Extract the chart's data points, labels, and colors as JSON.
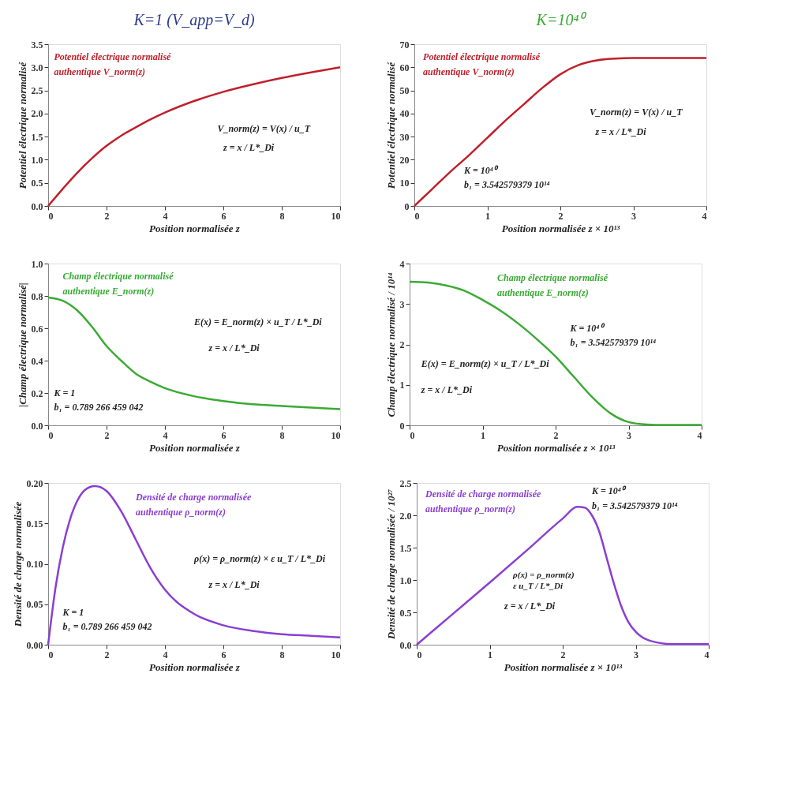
{
  "chart_data": [
    {
      "type": "line",
      "title": "K=1 (V_app=V_d)",
      "xlabel": "Position normalisée z",
      "ylabel": "Potentiel électrique normalisé",
      "x": [
        0,
        0.5,
        1,
        1.5,
        2,
        2.5,
        3,
        3.5,
        4,
        5,
        6,
        7,
        8,
        9,
        10
      ],
      "series": [
        {
          "color": "#c0202a",
          "values": [
            0,
            0.37,
            0.72,
            1.03,
            1.3,
            1.52,
            1.7,
            1.87,
            2.02,
            2.27,
            2.47,
            2.63,
            2.77,
            2.89,
            3.0
          ]
        }
      ],
      "xlim": [
        0,
        10
      ],
      "xticks": [
        0,
        2,
        4,
        6,
        8,
        10
      ],
      "ylim": [
        0,
        3.5
      ],
      "yticks": [
        {
          "value": 0,
          "label": "0.0"
        },
        0.5,
        {
          "value": 1,
          "label": "1.0"
        },
        1.5,
        {
          "value": 2,
          "label": "2.0"
        },
        2.5,
        {
          "value": 3,
          "label": "3.0"
        },
        3.5
      ],
      "annotations": [
        "Potentiel électrique normalisé",
        "authentique V_norm(z)",
        "V_norm(z) = V(x) / u_T",
        "z = x / L*_Di"
      ]
    },
    {
      "type": "line",
      "title": "K=10⁴⁰",
      "xlabel": "Position normalisée z × 10¹³",
      "ylabel": "Potentiel électrique normalisé",
      "x": [
        0,
        0.25,
        0.5,
        0.75,
        1,
        1.25,
        1.5,
        1.75,
        2,
        2.25,
        2.5,
        2.75,
        3,
        3.5,
        4
      ],
      "series": [
        {
          "color": "#c0202a",
          "values": [
            0,
            7.5,
            15,
            22,
            29.5,
            37,
            44,
            51,
            57,
            61,
            63,
            63.8,
            64,
            64,
            64
          ]
        }
      ],
      "xlim": [
        0,
        4
      ],
      "xticks": [
        0,
        1,
        2,
        3,
        4
      ],
      "ylim": [
        0,
        70
      ],
      "yticks": [
        0,
        10,
        20,
        30,
        40,
        50,
        60,
        70
      ],
      "annotations": [
        "Potentiel électrique normalisé",
        "authentique V_norm(z)",
        "V_norm(z) = V(x) / u_T",
        "z = x / L*_Di",
        "K = 10⁴⁰",
        "b₁ = 3.542579379 10¹⁴"
      ]
    },
    {
      "type": "line",
      "xlabel": "Position normalisée z",
      "ylabel": "|Champ électrique normalisé|",
      "x": [
        0,
        0.5,
        1,
        1.5,
        2,
        2.5,
        3,
        3.5,
        4,
        5,
        6,
        7,
        8,
        9,
        10
      ],
      "series": [
        {
          "color": "#3aaa35",
          "values": [
            0.79,
            0.77,
            0.71,
            0.61,
            0.49,
            0.4,
            0.32,
            0.27,
            0.23,
            0.18,
            0.15,
            0.13,
            0.12,
            0.11,
            0.1
          ]
        }
      ],
      "xlim": [
        0,
        10
      ],
      "xticks": [
        0,
        2,
        4,
        6,
        8,
        10
      ],
      "ylim": [
        0,
        1
      ],
      "yticks": [
        {
          "value": 0,
          "label": "0.0"
        },
        0.2,
        0.4,
        0.6,
        0.8,
        {
          "value": 1,
          "label": "1.0"
        }
      ],
      "annotations": [
        "Champ électrique normalisé",
        "authentique E_norm(z)",
        "E(x) = E_norm(z) × u_T / L*_Di",
        "z = x / L*_Di",
        "K = 1",
        "b₁ = 0.789 266 459 042"
      ]
    },
    {
      "type": "line",
      "xlabel": "Position normalisée z × 10¹³",
      "ylabel": "Champ électrique normalisé / 10¹⁴",
      "x": [
        0,
        0.25,
        0.5,
        0.75,
        1,
        1.25,
        1.5,
        1.75,
        2,
        2.25,
        2.5,
        2.75,
        3,
        3.25,
        3.5,
        4
      ],
      "series": [
        {
          "color": "#3aaa35",
          "values": [
            3.55,
            3.53,
            3.46,
            3.33,
            3.1,
            2.83,
            2.5,
            2.12,
            1.7,
            1.2,
            0.7,
            0.3,
            0.08,
            0.02,
            0.01,
            0.01
          ]
        }
      ],
      "xlim": [
        0,
        4
      ],
      "xticks": [
        0,
        1,
        2,
        3,
        4
      ],
      "ylim": [
        0,
        4
      ],
      "yticks": [
        0,
        1,
        2,
        3,
        4
      ],
      "annotations": [
        "Champ électrique normalisé",
        "authentique E_norm(z)",
        "K = 10⁴⁰",
        "b₁ = 3.542579379 10¹⁴",
        "E(x) = E_norm(z) × u_T / L*_Di",
        "z = x / L*_Di"
      ]
    },
    {
      "type": "line",
      "xlabel": "Position normalisée z",
      "ylabel": "Densité de charge normalisée",
      "x": [
        0,
        0.25,
        0.5,
        0.75,
        1,
        1.25,
        1.6,
        2,
        2.5,
        3,
        3.5,
        4,
        5,
        6,
        7,
        8,
        9,
        10
      ],
      "series": [
        {
          "color": "#8a3fd1",
          "values": [
            0,
            0.07,
            0.12,
            0.155,
            0.178,
            0.191,
            0.196,
            0.19,
            0.165,
            0.13,
            0.095,
            0.068,
            0.038,
            0.024,
            0.017,
            0.013,
            0.011,
            0.009
          ]
        }
      ],
      "xlim": [
        0,
        10
      ],
      "xticks": [
        0,
        2,
        4,
        6,
        8,
        10
      ],
      "ylim": [
        0,
        0.2
      ],
      "yticks": [
        {
          "value": 0,
          "label": "0.00"
        },
        0.05,
        {
          "value": 0.1,
          "label": "0.10"
        },
        0.15,
        {
          "value": 0.2,
          "label": "0.20"
        }
      ],
      "annotations": [
        "Densité de charge normalisée",
        "authentique ρ_norm(z)",
        "ρ(x) = ρ_norm(z) × ε u_T / L*_Di",
        "z = x / L*_Di",
        "K = 1",
        "b₁ = 0.789 266 459 042"
      ]
    },
    {
      "type": "line",
      "xlabel": "Position normalisée z × 10¹³",
      "ylabel": "Densité de charge normalisée / 10²⁷",
      "x": [
        0,
        0.5,
        1,
        1.5,
        2,
        2.2,
        2.3,
        2.4,
        2.5,
        2.6,
        2.7,
        2.8,
        2.9,
        3,
        3.2,
        3.5,
        4
      ],
      "series": [
        {
          "color": "#8a3fd1",
          "values": [
            0,
            0.48,
            0.96,
            1.45,
            1.95,
            2.13,
            2.12,
            2.0,
            1.75,
            1.35,
            0.95,
            0.6,
            0.35,
            0.2,
            0.06,
            0.01,
            0.01
          ]
        }
      ],
      "xlim": [
        0,
        4
      ],
      "xticks": [
        0,
        1,
        2,
        3,
        4
      ],
      "ylim": [
        0,
        2.5
      ],
      "yticks": [
        {
          "value": 0,
          "label": "0.0"
        },
        0.5,
        {
          "value": 1,
          "label": "1.0"
        },
        1.5,
        {
          "value": 2,
          "label": "2.0"
        },
        2.5
      ],
      "annotations": [
        "Densité de charge normalisée",
        "authentique ρ_norm(z)",
        "K = 10⁴⁰",
        "b₁ = 3.542579379 10¹⁴",
        "ρ(x) = ρ_norm(z) ε u_T / L*_Di",
        "z = x / L*_Di"
      ]
    }
  ]
}
